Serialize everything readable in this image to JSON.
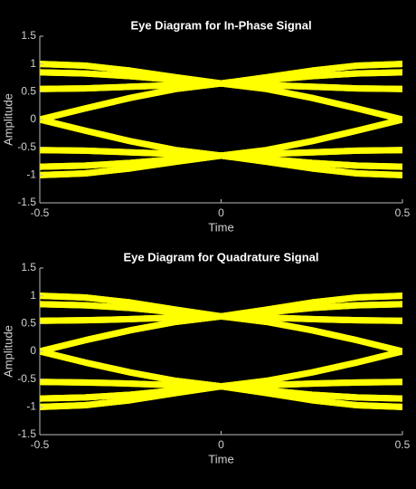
{
  "chart_data": [
    {
      "type": "line",
      "title": "Eye Diagram for In-Phase Signal",
      "xlabel": "Time",
      "ylabel": "Amplitude",
      "color": "#ffff00",
      "xlim": [
        -0.5,
        0.5
      ],
      "ylim": [
        -1.5,
        1.5
      ],
      "xticks": [
        -0.5,
        0,
        0.5
      ],
      "yticks": [
        -1.5,
        -1,
        -0.5,
        0,
        0.5,
        1,
        1.5
      ],
      "x": [
        -0.5,
        -0.375,
        -0.25,
        -0.125,
        0,
        0.125,
        0.25,
        0.375,
        0.5
      ],
      "series": [
        {
          "values": [
            1.0,
            0.97,
            0.88,
            0.76,
            0.65,
            0.76,
            0.88,
            0.97,
            1.0
          ]
        },
        {
          "values": [
            0.85,
            0.83,
            0.78,
            0.71,
            0.65,
            0.71,
            0.78,
            0.83,
            0.85
          ]
        },
        {
          "values": [
            0.55,
            0.56,
            0.59,
            0.62,
            0.65,
            0.62,
            0.59,
            0.56,
            0.55
          ]
        },
        {
          "values": [
            0,
            0.2,
            0.39,
            0.55,
            0.65,
            0.55,
            0.39,
            0.2,
            0
          ]
        },
        {
          "values": [
            1.0,
            0.97,
            0.88,
            0.76,
            0.65,
            0.62,
            0.59,
            0.56,
            0.55
          ]
        },
        {
          "values": [
            0.55,
            0.56,
            0.59,
            0.62,
            0.65,
            0.76,
            0.88,
            0.97,
            1.0
          ]
        },
        {
          "values": [
            0,
            0.2,
            0.39,
            0.55,
            0.65,
            0.71,
            0.78,
            0.83,
            0.85
          ]
        },
        {
          "values": [
            0.85,
            0.83,
            0.78,
            0.71,
            0.65,
            0.55,
            0.39,
            0.2,
            0
          ]
        },
        {
          "values": [
            -1.0,
            -0.97,
            -0.88,
            -0.76,
            -0.65,
            -0.76,
            -0.88,
            -0.97,
            -1.0
          ]
        },
        {
          "values": [
            -0.85,
            -0.83,
            -0.78,
            -0.71,
            -0.65,
            -0.71,
            -0.78,
            -0.83,
            -0.85
          ]
        },
        {
          "values": [
            -0.55,
            -0.56,
            -0.59,
            -0.62,
            -0.65,
            -0.62,
            -0.59,
            -0.56,
            -0.55
          ]
        },
        {
          "values": [
            0,
            -0.2,
            -0.39,
            -0.55,
            -0.65,
            -0.55,
            -0.39,
            -0.2,
            0
          ]
        },
        {
          "values": [
            -1.0,
            -0.97,
            -0.88,
            -0.76,
            -0.65,
            -0.62,
            -0.59,
            -0.56,
            -0.55
          ]
        },
        {
          "values": [
            -0.55,
            -0.56,
            -0.59,
            -0.62,
            -0.65,
            -0.76,
            -0.88,
            -0.97,
            -1.0
          ]
        },
        {
          "values": [
            0,
            -0.2,
            -0.39,
            -0.55,
            -0.65,
            -0.71,
            -0.78,
            -0.83,
            -0.85
          ]
        },
        {
          "values": [
            -0.85,
            -0.83,
            -0.78,
            -0.71,
            -0.65,
            -0.55,
            -0.39,
            -0.2,
            0
          ]
        }
      ]
    },
    {
      "type": "line",
      "title": "Eye Diagram for Quadrature Signal",
      "xlabel": "Time",
      "ylabel": "Amplitude",
      "color": "#ffff00",
      "xlim": [
        -0.5,
        0.5
      ],
      "ylim": [
        -1.5,
        1.5
      ],
      "xticks": [
        -0.5,
        0,
        0.5
      ],
      "yticks": [
        -1.5,
        -1,
        -0.5,
        0,
        0.5,
        1,
        1.5
      ],
      "x": [
        -0.5,
        -0.375,
        -0.25,
        -0.125,
        0,
        0.125,
        0.25,
        0.375,
        0.5
      ],
      "series": [
        {
          "values": [
            1.0,
            0.97,
            0.88,
            0.75,
            0.63,
            0.75,
            0.88,
            0.97,
            1.0
          ]
        },
        {
          "values": [
            0.85,
            0.83,
            0.78,
            0.7,
            0.63,
            0.7,
            0.78,
            0.83,
            0.85
          ]
        },
        {
          "values": [
            0.55,
            0.56,
            0.58,
            0.61,
            0.63,
            0.61,
            0.58,
            0.56,
            0.55
          ]
        },
        {
          "values": [
            0,
            0.2,
            0.38,
            0.53,
            0.63,
            0.53,
            0.38,
            0.2,
            0
          ]
        },
        {
          "values": [
            1.0,
            0.97,
            0.88,
            0.75,
            0.63,
            0.61,
            0.58,
            0.56,
            0.55
          ]
        },
        {
          "values": [
            0.55,
            0.56,
            0.58,
            0.61,
            0.63,
            0.75,
            0.88,
            0.97,
            1.0
          ]
        },
        {
          "values": [
            0,
            0.2,
            0.38,
            0.53,
            0.63,
            0.7,
            0.78,
            0.83,
            0.85
          ]
        },
        {
          "values": [
            0.85,
            0.83,
            0.78,
            0.7,
            0.63,
            0.53,
            0.38,
            0.2,
            0
          ]
        },
        {
          "values": [
            -1.0,
            -0.97,
            -0.88,
            -0.75,
            -0.63,
            -0.75,
            -0.88,
            -0.97,
            -1.0
          ]
        },
        {
          "values": [
            -0.85,
            -0.83,
            -0.78,
            -0.7,
            -0.63,
            -0.7,
            -0.78,
            -0.83,
            -0.85
          ]
        },
        {
          "values": [
            -0.55,
            -0.56,
            -0.58,
            -0.61,
            -0.63,
            -0.61,
            -0.58,
            -0.56,
            -0.55
          ]
        },
        {
          "values": [
            0,
            -0.2,
            -0.38,
            -0.53,
            -0.63,
            -0.53,
            -0.38,
            -0.2,
            0
          ]
        },
        {
          "values": [
            -1.0,
            -0.97,
            -0.88,
            -0.75,
            -0.63,
            -0.61,
            -0.58,
            -0.56,
            -0.55
          ]
        },
        {
          "values": [
            -0.55,
            -0.56,
            -0.58,
            -0.61,
            -0.63,
            -0.75,
            -0.88,
            -0.97,
            -1.0
          ]
        },
        {
          "values": [
            0,
            -0.2,
            -0.38,
            -0.53,
            -0.63,
            -0.7,
            -0.78,
            -0.83,
            -0.85
          ]
        },
        {
          "values": [
            -0.85,
            -0.83,
            -0.78,
            -0.7,
            -0.63,
            -0.53,
            -0.38,
            -0.2,
            0
          ]
        }
      ]
    }
  ]
}
